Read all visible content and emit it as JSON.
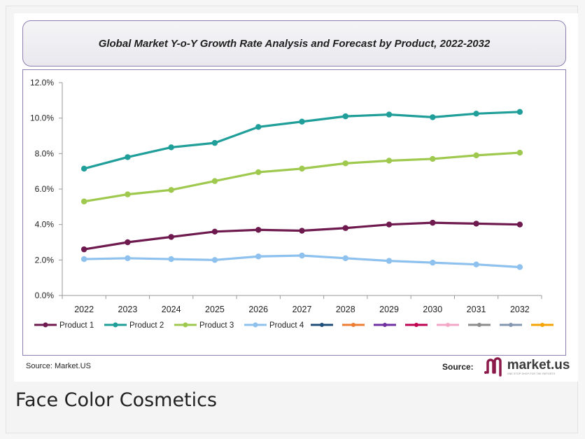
{
  "source_left": "Source: Market.US",
  "brand": {
    "source_label": "Source:",
    "name": "market.us",
    "tagline": "ONE STOP SHOP FOR THE REPORTS",
    "logo_color": "#8b1a4a"
  },
  "caption": "Face Color Cosmetics",
  "chart_data": {
    "type": "line",
    "title": "Global Market Y-o-Y  Growth Rate Analysis and Forecast by Product, 2022-2032",
    "x": [
      "2022",
      "2023",
      "2024",
      "2025",
      "2026",
      "2027",
      "2028",
      "2029",
      "2030",
      "2031",
      "2032"
    ],
    "ylim": [
      0,
      12
    ],
    "yticks": [
      "0.0%",
      "2.0%",
      "4.0%",
      "6.0%",
      "8.0%",
      "10.0%",
      "12.0%"
    ],
    "y_unit": "%",
    "grid": false,
    "legend_position": "bottom",
    "series": [
      {
        "name": "Product 1",
        "color": "#6e1a4f",
        "values": [
          2.6,
          3.0,
          3.3,
          3.6,
          3.7,
          3.65,
          3.8,
          4.0,
          4.1,
          4.05,
          4.0
        ]
      },
      {
        "name": "Product 2",
        "color": "#1f9e9a",
        "values": [
          7.15,
          7.8,
          8.35,
          8.6,
          9.5,
          9.8,
          10.1,
          10.2,
          10.05,
          10.25,
          10.35
        ]
      },
      {
        "name": "Product 3",
        "color": "#9fc94e",
        "values": [
          5.3,
          5.7,
          5.95,
          6.45,
          6.95,
          7.15,
          7.45,
          7.6,
          7.7,
          7.9,
          8.05
        ]
      },
      {
        "name": "Product 4",
        "color": "#8ec1ee",
        "values": [
          2.05,
          2.1,
          2.05,
          2.0,
          2.2,
          2.25,
          2.1,
          1.95,
          1.85,
          1.75,
          1.6
        ]
      }
    ],
    "legend_extra_swatches": [
      "#1f4e79",
      "#ed7d31",
      "#7030a0",
      "#c00050",
      "#f4a6c6",
      "#8c8c8c",
      "#8497b0",
      "#f4a300"
    ]
  }
}
